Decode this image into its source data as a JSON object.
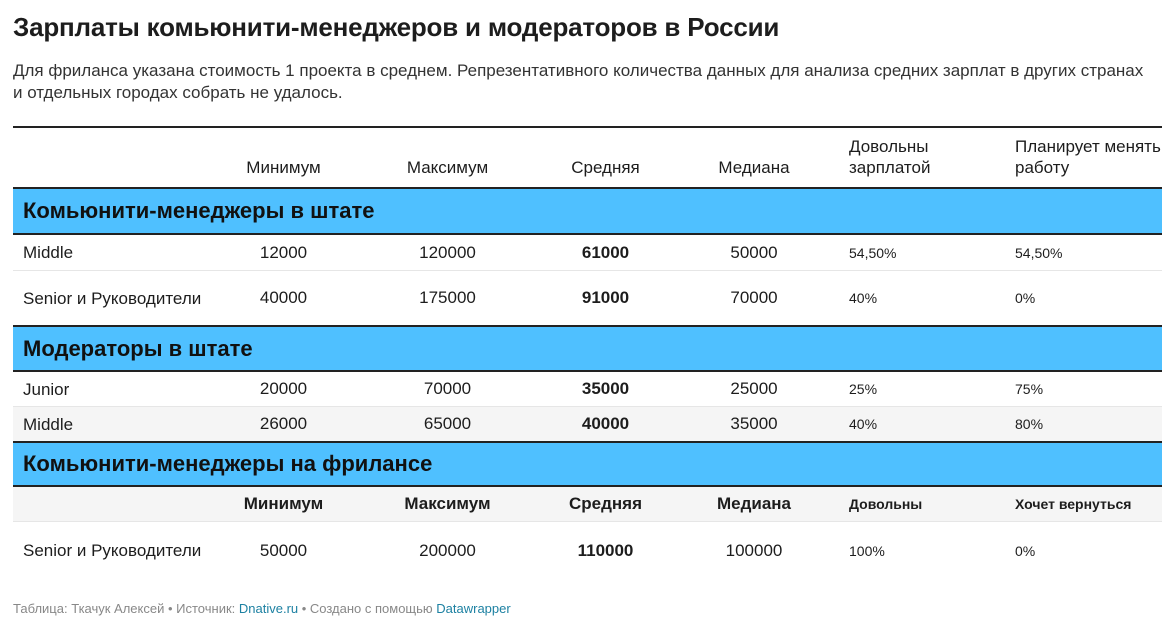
{
  "title": "Зарплаты комьюнити-менеджеров и модераторов в России",
  "subtitle": "Для фриланса указана стоимость 1 проекта в среднем. Репрезентативного количества данных для анализа средних зарплат в других странах и отдельных городах собрать не удалось.",
  "header": {
    "col_min": "Минимум",
    "col_max": "Максимум",
    "col_avg": "Средняя",
    "col_median": "Медиана",
    "col_satisfied": "Довольны зарплатой",
    "col_plan": "Планирует менять работу"
  },
  "sections": [
    {
      "label": "Комьюнити-менеджеры в штате",
      "rows": [
        {
          "role": "Middle",
          "min": "12000",
          "max": "120000",
          "avg": "61000",
          "median": "50000",
          "satisfied": "54,50%",
          "plan": "54,50%"
        },
        {
          "role": "Senior и Руководители",
          "min": "40000",
          "max": "175000",
          "avg": "91000",
          "median": "70000",
          "satisfied": "40%",
          "plan": "0%"
        }
      ]
    },
    {
      "label": "Модераторы в штате",
      "rows": [
        {
          "role": "Junior",
          "min": "20000",
          "max": "70000",
          "avg": "35000",
          "median": "25000",
          "satisfied": "25%",
          "plan": "75%"
        },
        {
          "role": "Middle",
          "min": "26000",
          "max": "65000",
          "avg": "40000",
          "median": "35000",
          "satisfied": "40%",
          "plan": "80%"
        }
      ]
    },
    {
      "label": "Комьюнити-менеджеры на фрилансе",
      "subheader": {
        "min": "Минимум",
        "max": "Максимум",
        "avg": "Средняя",
        "median": "Медиана",
        "satisfied": "Довольны",
        "plan": "Хочет вернуться"
      },
      "rows": [
        {
          "role": "Senior и Руководители",
          "min": "50000",
          "max": "200000",
          "avg": "110000",
          "median": "100000",
          "satisfied": "100%",
          "plan": "0%"
        }
      ]
    }
  ],
  "footer": {
    "prefix": "Таблица: Ткачук Алексей • Источник: ",
    "source": "Dnative.ru",
    "middle": " • Создано с помощью ",
    "tool": "Datawrapper"
  }
}
